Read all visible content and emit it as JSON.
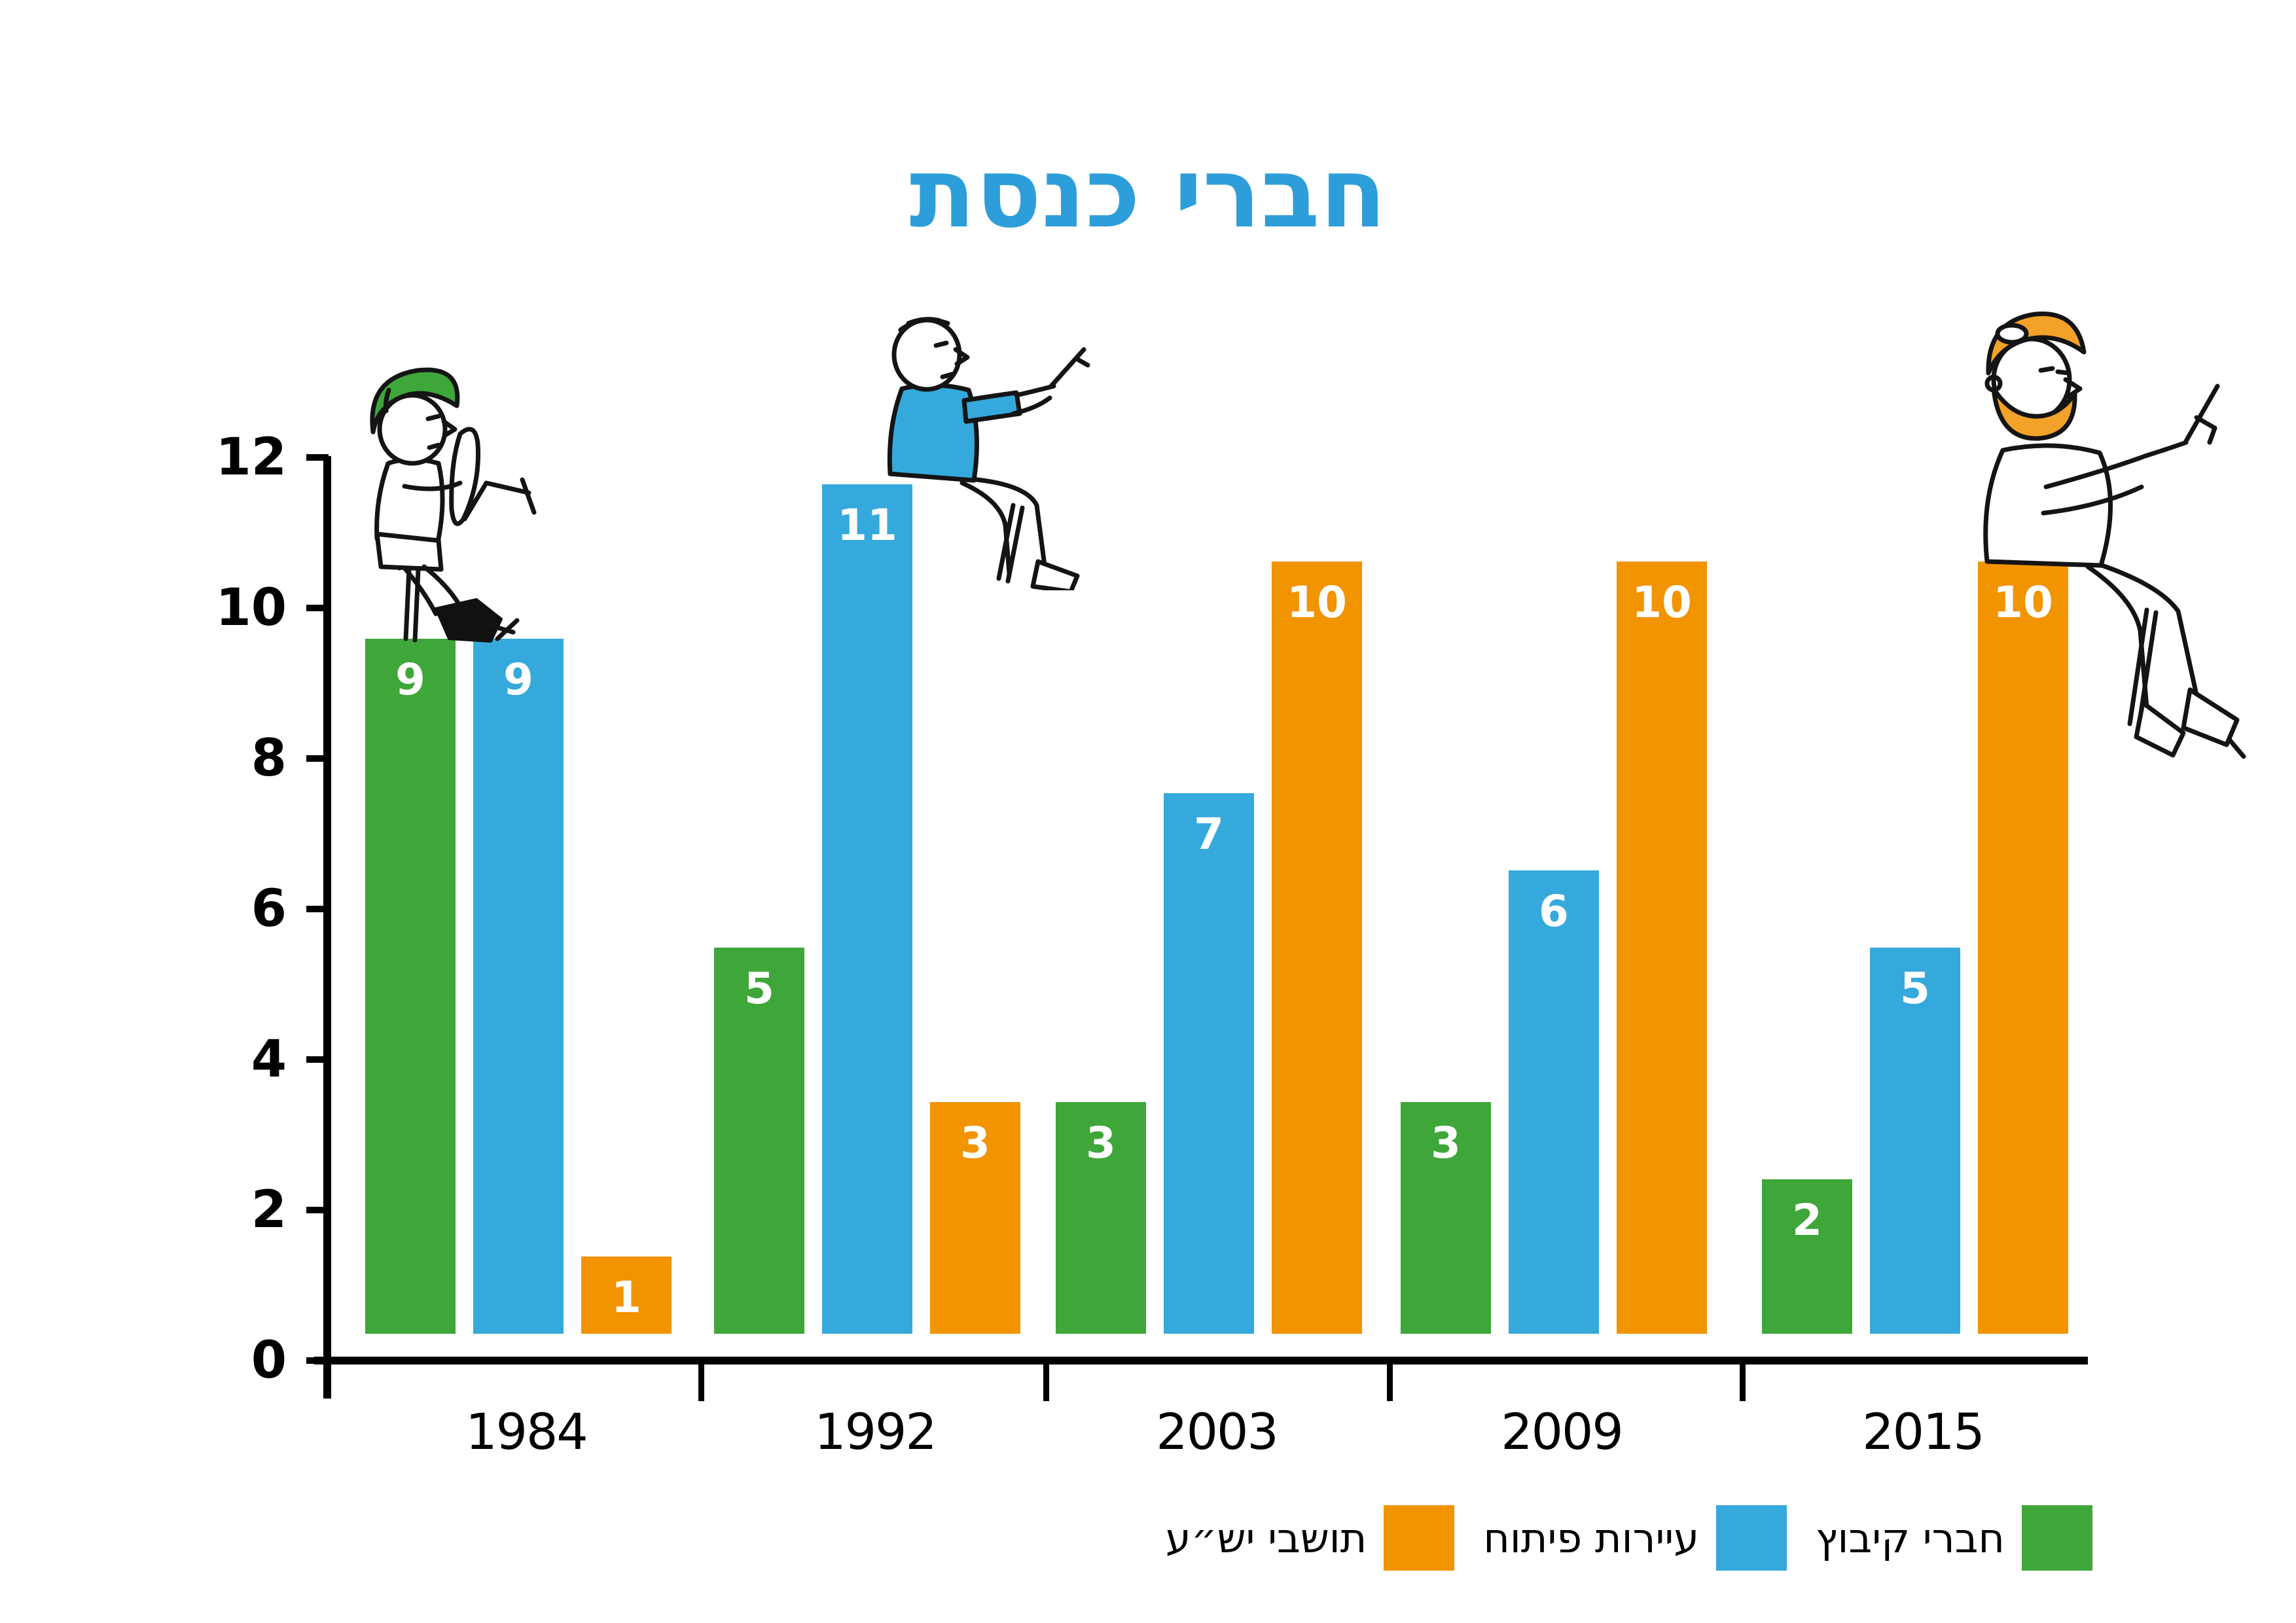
{
  "title": {
    "text": "חברי כנסת",
    "color": "#2D9ED9"
  },
  "chart_data": {
    "type": "bar",
    "title": "חברי כנסת",
    "categories": [
      "1984",
      "1992",
      "2003",
      "2009",
      "2015"
    ],
    "series": [
      {
        "key": "kibbutz",
        "name": "חברי קיבוץ",
        "color": "#3FA63A",
        "values": [
          9,
          5,
          3,
          3,
          2
        ]
      },
      {
        "key": "development-towns",
        "name": "עיירות פיתוח",
        "color": "#36A9DC",
        "values": [
          9,
          11,
          7,
          6,
          5
        ]
      },
      {
        "key": "yesha",
        "name": "תושבי יש״ע",
        "color": "#F29300",
        "values": [
          1,
          3,
          10,
          10,
          10
        ]
      }
    ],
    "xlabel": "",
    "ylabel": "",
    "yticks": [
      0,
      2,
      4,
      6,
      8,
      10,
      12
    ],
    "ylim": [
      0,
      12
    ],
    "grid": false,
    "bar_value_labels": [
      [
        9,
        9,
        1
      ],
      [
        5,
        11,
        3
      ],
      [
        3,
        7,
        10
      ],
      [
        3,
        6,
        10
      ],
      [
        2,
        5,
        10
      ]
    ],
    "legend_position": "bottom-right",
    "legend_order_rtl": [
      "חברי קיבוץ",
      "עיירות פיתוח",
      "תושבי יש״ע"
    ]
  },
  "legend": {
    "items": [
      {
        "label": "חברי קיבוץ",
        "color": "#3FA63A"
      },
      {
        "label": "עיירות פיתוח",
        "color": "#36A9DC"
      },
      {
        "label": "תושבי יש״ע",
        "color": "#F29300"
      }
    ]
  },
  "illustrations": [
    {
      "name": "man-with-green-tembel-hat-and-scythe",
      "sits_on": "1984",
      "accent": "#3FA63A"
    },
    {
      "name": "man-in-blue-shirt-with-pen",
      "sits_on": "1992",
      "accent": "#36A9DC"
    },
    {
      "name": "man-with-orange-hair-and-beard",
      "sits_on": "2015",
      "accent": "#F29300"
    }
  ]
}
